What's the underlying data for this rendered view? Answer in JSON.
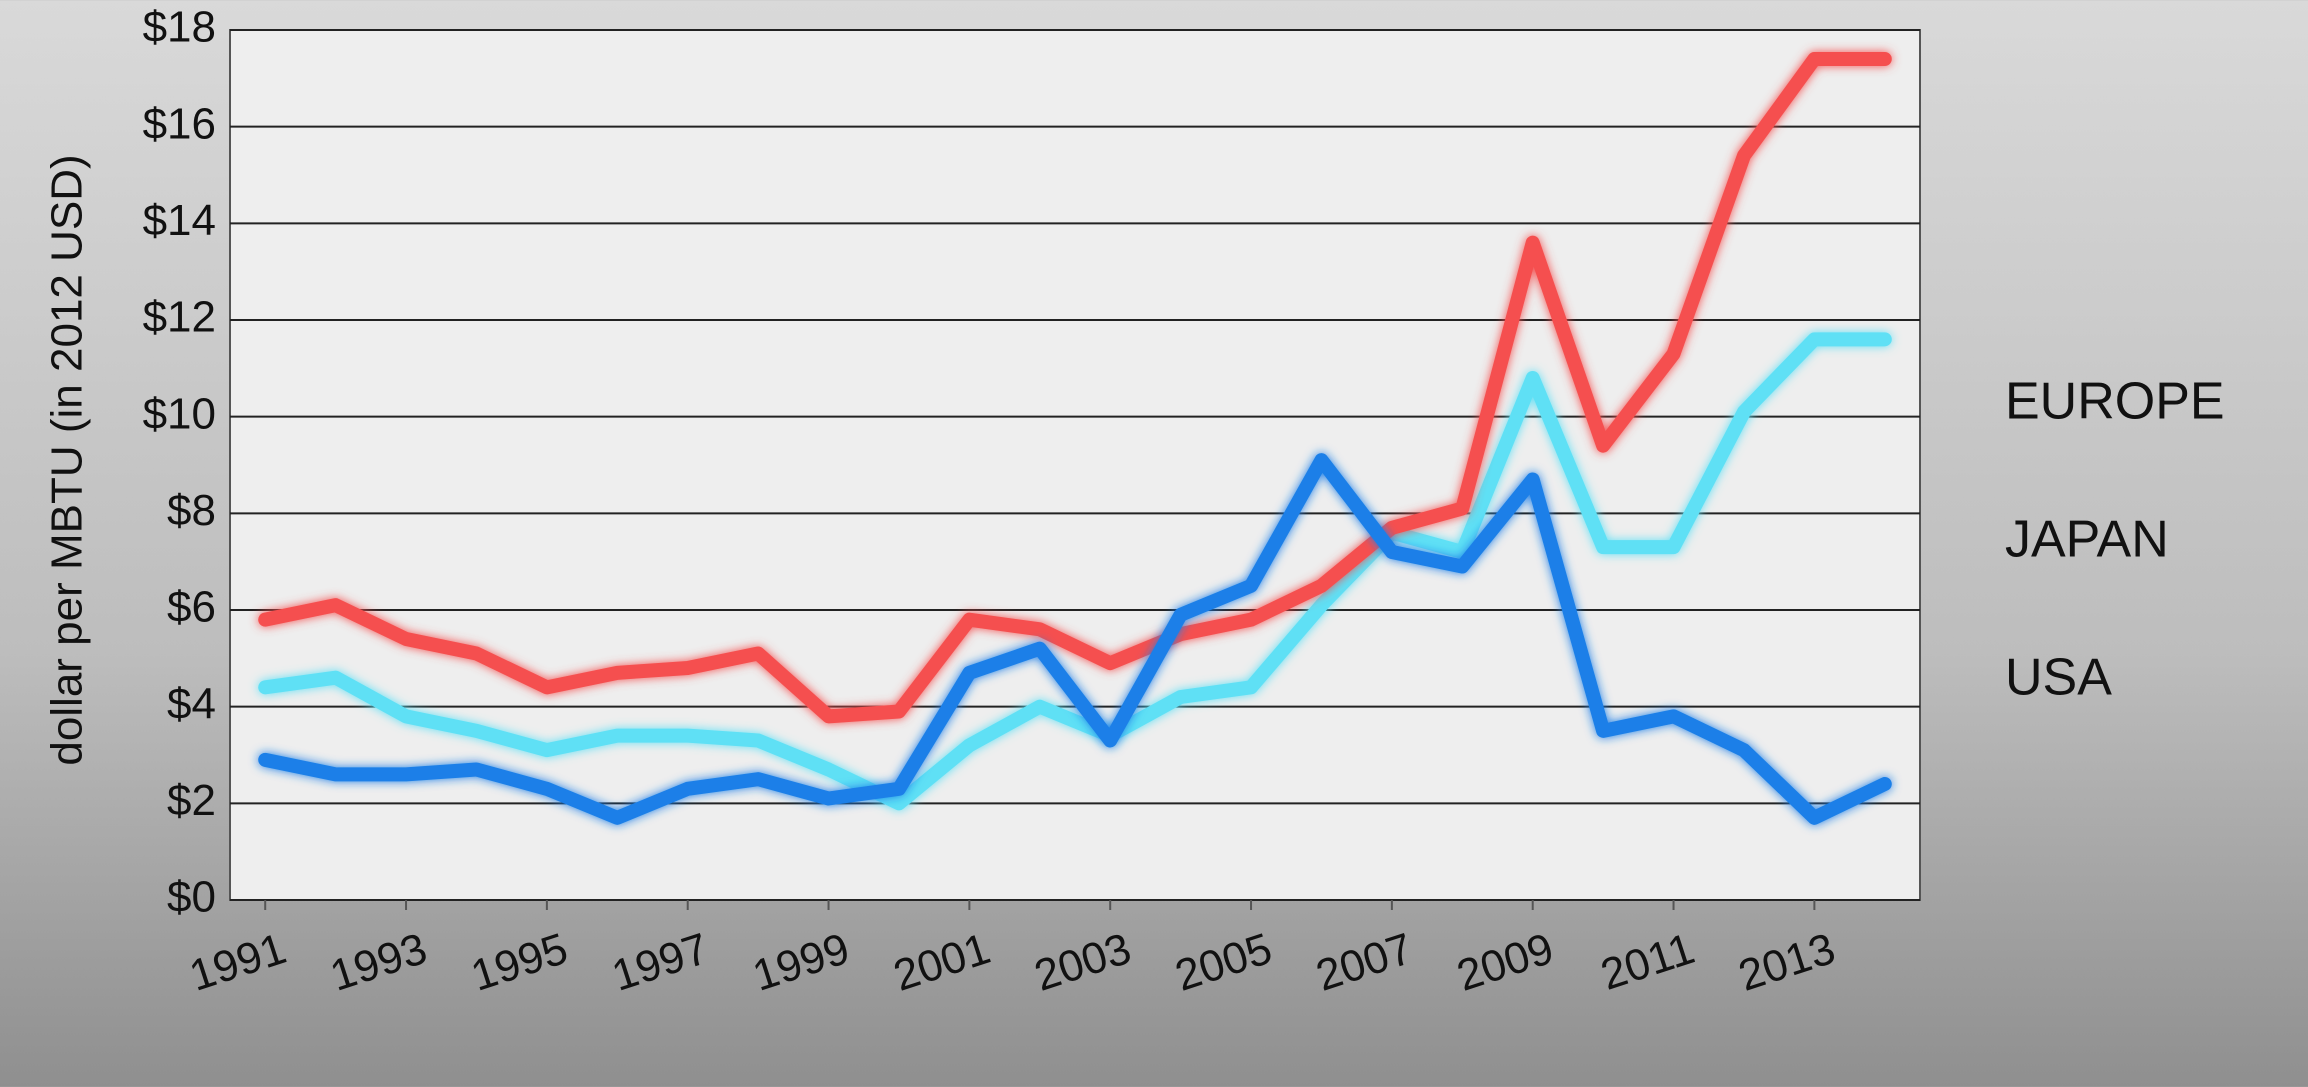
{
  "chart_data": {
    "type": "line",
    "y_label": "dollar per MBTU (in 2012 USD)",
    "x": [
      1991,
      1992,
      1993,
      1994,
      1995,
      1996,
      1997,
      1998,
      1999,
      2000,
      2001,
      2002,
      2003,
      2004,
      2005,
      2006,
      2007,
      2008,
      2009,
      2010,
      2011,
      2012,
      2013,
      2014
    ],
    "xlim": [
      1990.5,
      2014.5
    ],
    "xticks": [
      1991,
      1993,
      1995,
      1997,
      1999,
      2001,
      2003,
      2005,
      2007,
      2009,
      2011,
      2013
    ],
    "ylim": [
      0,
      18
    ],
    "yticks": [
      {
        "value": 0,
        "label": "$0"
      },
      {
        "value": 2,
        "label": "$2"
      },
      {
        "value": 4,
        "label": "$4"
      },
      {
        "value": 6,
        "label": "$6"
      },
      {
        "value": 8,
        "label": "$8"
      },
      {
        "value": 10,
        "label": "$10"
      },
      {
        "value": 12,
        "label": "$12"
      },
      {
        "value": 14,
        "label": "$14"
      },
      {
        "value": 16,
        "label": "$16"
      },
      {
        "value": 18,
        "label": "$18"
      }
    ],
    "grid": true,
    "legend": "right",
    "series": [
      {
        "name": "EUROPE",
        "color": "#5fe0f5",
        "values": [
          4.4,
          4.6,
          3.8,
          3.5,
          3.1,
          3.4,
          3.4,
          3.3,
          2.7,
          2.0,
          3.2,
          4.0,
          3.4,
          4.2,
          4.4,
          6.1,
          7.6,
          7.2,
          10.8,
          7.3,
          7.3,
          10.1,
          11.6,
          11.6
        ]
      },
      {
        "name": "JAPAN",
        "color": "#f5504f",
        "values": [
          5.8,
          6.1,
          5.4,
          5.1,
          4.4,
          4.7,
          4.8,
          5.1,
          3.8,
          3.9,
          5.8,
          5.6,
          4.9,
          5.5,
          5.8,
          6.5,
          7.7,
          8.1,
          13.6,
          9.4,
          11.3,
          15.4,
          17.4,
          17.4
        ]
      },
      {
        "name": "USA",
        "color": "#1a7fe8",
        "values": [
          2.9,
          2.6,
          2.6,
          2.7,
          2.3,
          1.7,
          2.3,
          2.5,
          2.1,
          2.3,
          4.7,
          5.2,
          3.3,
          5.9,
          6.5,
          9.1,
          7.2,
          6.9,
          8.7,
          3.5,
          3.8,
          3.1,
          1.7,
          2.4
        ]
      }
    ]
  }
}
